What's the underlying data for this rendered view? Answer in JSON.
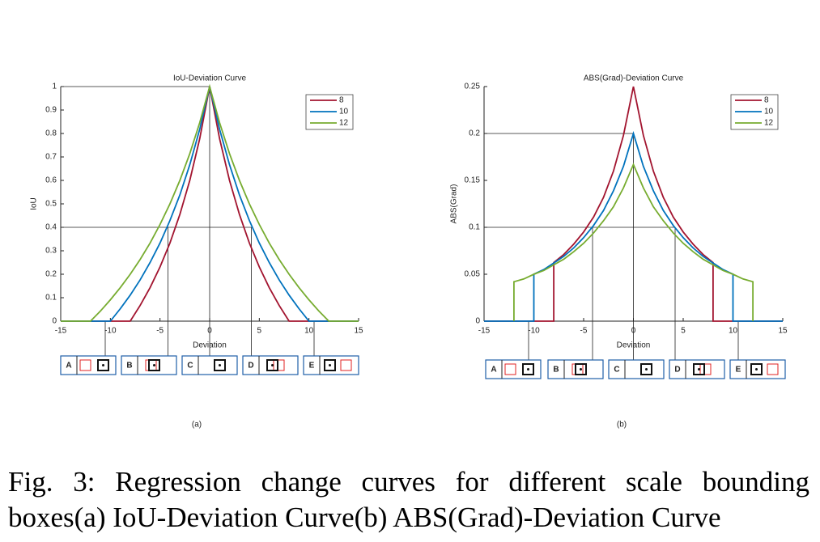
{
  "chart_data": [
    {
      "type": "line",
      "title": "IoU-Deviation Curve",
      "x_label": "Deviation",
      "y_label": "IoU",
      "xlim": [
        -15,
        15
      ],
      "xticks": [
        -15,
        -10,
        -5,
        0,
        5,
        10,
        15
      ],
      "ylim": [
        0,
        1
      ],
      "yticks": [
        0,
        0.1,
        0.2,
        0.3,
        0.4,
        0.5,
        0.6,
        0.7,
        0.8,
        0.9,
        1
      ],
      "legend": "upper right",
      "series": [
        {
          "name": "8",
          "color": "#a2142f",
          "x": [
            -15,
            -8,
            -7,
            -6,
            -5,
            -4,
            -3,
            -2,
            -1,
            0,
            1,
            2,
            3,
            4,
            5,
            6,
            7,
            8,
            15
          ],
          "values": [
            0,
            0,
            0.067,
            0.143,
            0.231,
            0.333,
            0.455,
            0.6,
            0.778,
            1,
            0.778,
            0.6,
            0.455,
            0.333,
            0.231,
            0.143,
            0.067,
            0,
            0
          ]
        },
        {
          "name": "10",
          "color": "#0072bd",
          "x": [
            -15,
            -10,
            -9,
            -8,
            -7,
            -6,
            -5,
            -4,
            -3,
            -2,
            -1,
            0,
            1,
            2,
            3,
            4,
            5,
            6,
            7,
            8,
            9,
            10,
            15
          ],
          "values": [
            0,
            0,
            0.053,
            0.111,
            0.176,
            0.25,
            0.333,
            0.429,
            0.538,
            0.667,
            0.818,
            1,
            0.818,
            0.667,
            0.538,
            0.429,
            0.333,
            0.25,
            0.176,
            0.111,
            0.053,
            0,
            0
          ]
        },
        {
          "name": "12",
          "color": "#77ac30",
          "x": [
            -15,
            -12,
            -11,
            -10,
            -9,
            -8,
            -7,
            -6,
            -5,
            -4,
            -3,
            -2,
            -1,
            0,
            1,
            2,
            3,
            4,
            5,
            6,
            7,
            8,
            9,
            10,
            11,
            12,
            15
          ],
          "values": [
            0,
            0,
            0.043,
            0.091,
            0.143,
            0.2,
            0.263,
            0.333,
            0.412,
            0.5,
            0.6,
            0.714,
            0.846,
            1,
            0.846,
            0.714,
            0.6,
            0.5,
            0.412,
            0.333,
            0.263,
            0.2,
            0.143,
            0.091,
            0.043,
            0,
            0
          ]
        }
      ]
    },
    {
      "type": "line",
      "title": "ABS(Grad)-Deviation Curve",
      "x_label": "Deviation",
      "y_label": "ABS(Grad)",
      "xlim": [
        -15,
        15
      ],
      "xticks": [
        -15,
        -10,
        -5,
        0,
        5,
        10,
        15
      ],
      "ylim": [
        0,
        0.25
      ],
      "yticks": [
        0,
        0.05,
        0.1,
        0.15,
        0.2,
        0.25
      ],
      "legend": "upper right",
      "series": [
        {
          "name": "8",
          "color": "#a2142f",
          "x": [
            -15,
            -8,
            -8,
            -7,
            -6,
            -5,
            -4,
            -3,
            -2,
            -1,
            0,
            1,
            2,
            3,
            4,
            5,
            6,
            7,
            8,
            8,
            15
          ],
          "values": [
            0,
            0,
            0.0625,
            0.071,
            0.082,
            0.095,
            0.111,
            0.132,
            0.16,
            0.198,
            0.25,
            0.198,
            0.16,
            0.132,
            0.111,
            0.095,
            0.082,
            0.071,
            0.0625,
            0,
            0
          ]
        },
        {
          "name": "10",
          "color": "#0072bd",
          "x": [
            -15,
            -10,
            -10,
            -9,
            -8,
            -7,
            -6,
            -5,
            -4,
            -3,
            -2,
            -1,
            0,
            1,
            2,
            3,
            4,
            5,
            6,
            7,
            8,
            9,
            10,
            10,
            15
          ],
          "values": [
            0,
            0,
            0.05,
            0.055,
            0.062,
            0.069,
            0.078,
            0.089,
            0.102,
            0.118,
            0.139,
            0.165,
            0.2,
            0.165,
            0.139,
            0.118,
            0.102,
            0.089,
            0.078,
            0.069,
            0.062,
            0.055,
            0.05,
            0,
            0
          ]
        },
        {
          "name": "12",
          "color": "#77ac30",
          "x": [
            -12,
            -12,
            -11,
            -10,
            -9,
            -8,
            -7,
            -6,
            -5,
            -4,
            -3,
            -2,
            -1,
            0,
            1,
            2,
            3,
            4,
            5,
            6,
            7,
            8,
            9,
            10,
            11,
            12,
            12
          ],
          "values": [
            0,
            0.042,
            0.045,
            0.05,
            0.054,
            0.06,
            0.066,
            0.074,
            0.083,
            0.094,
            0.107,
            0.122,
            0.142,
            0.167,
            0.142,
            0.122,
            0.107,
            0.094,
            0.083,
            0.074,
            0.066,
            0.06,
            0.054,
            0.05,
            0.045,
            0.042,
            0
          ]
        }
      ]
    }
  ],
  "figure": {
    "panel_labels": [
      "(a)",
      "(b)"
    ],
    "box_labels": [
      "A",
      "B",
      "C",
      "D",
      "E"
    ],
    "caption": "Fig. 3: Regression change curves for different scale bounding boxes(a) IoU-Deviation Curve(b) ABS(Grad)-Deviation Curve"
  }
}
